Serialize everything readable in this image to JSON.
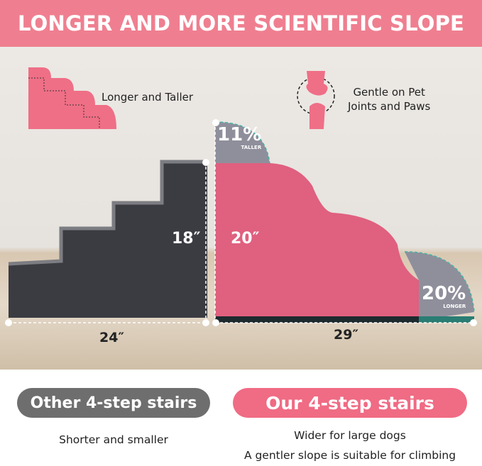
{
  "header": {
    "title": "LONGER AND MORE SCIENTIFIC SLOPE"
  },
  "features": [
    {
      "icon": "stair-profile-icon",
      "label": "Longer and Taller"
    },
    {
      "icon": "joint-icon",
      "label": "Gentle on Pet\nJoints and Paws"
    }
  ],
  "dimensions": {
    "other_height": "18″",
    "other_length": "24″",
    "ours_height": "20″",
    "ours_length": "29″",
    "taller_pct": "11%",
    "taller_word": "TALLER",
    "longer_pct": "20%",
    "longer_word": "LONGER"
  },
  "comparison": {
    "other": {
      "title": "Other 4-step stairs",
      "desc": "Shorter and smaller"
    },
    "ours": {
      "title": "Our 4-step stairs",
      "desc1": "Wider for large dogs",
      "desc2": "A gentler slope is suitable for climbing"
    }
  },
  "colors": {
    "accent": "#ef7f90",
    "pink_stair": "#e0607f",
    "dark_stair": "#3b3c42",
    "gray_pill": "#6e6e6e",
    "teal_outline": "#3fb5a6"
  }
}
